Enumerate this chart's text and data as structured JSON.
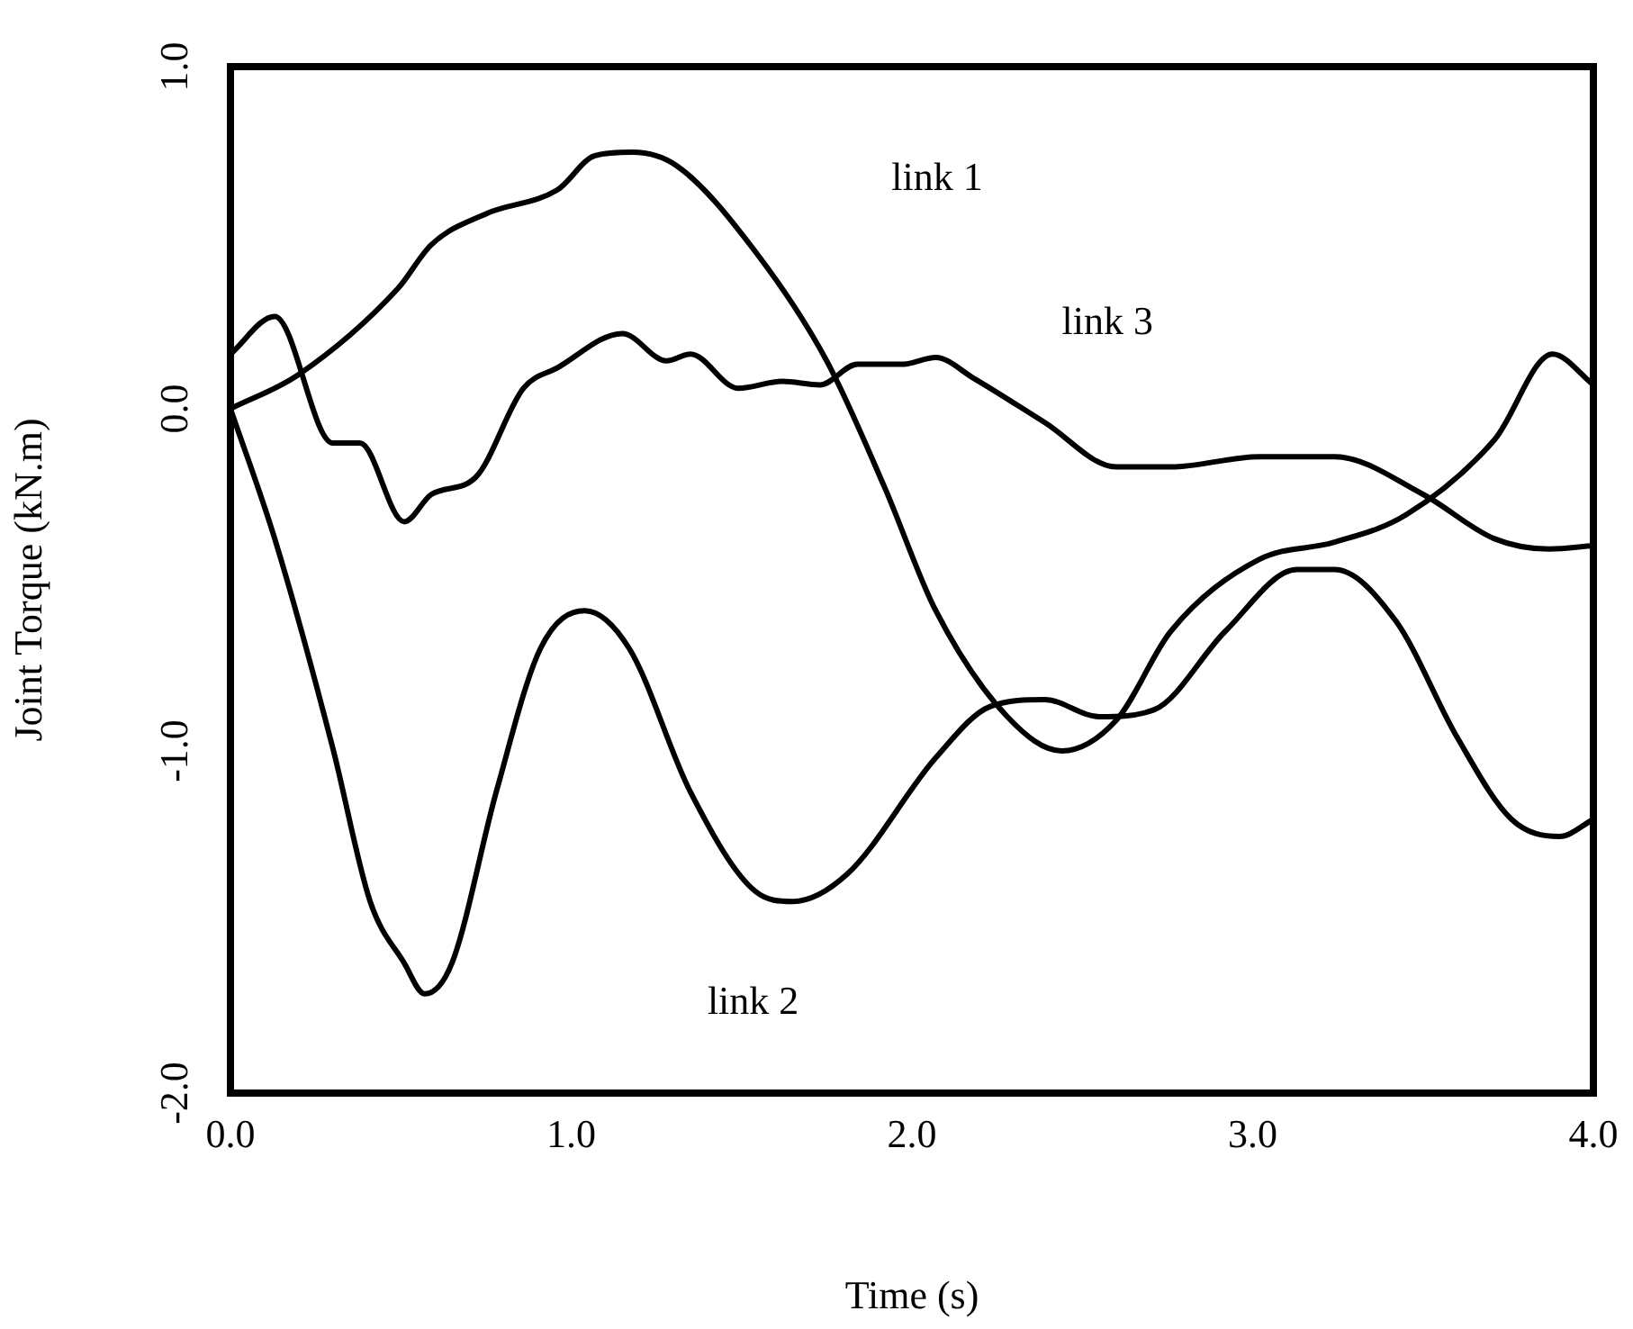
{
  "chart_data": {
    "type": "line",
    "xlabel": "Time (s)",
    "ylabel": "Joint Torque (kN.m)",
    "xlim": [
      0,
      4
    ],
    "ylim": [
      -2,
      1
    ],
    "xticks": [
      {
        "value": 0,
        "label": "0.0"
      },
      {
        "value": 1,
        "label": "1.0"
      },
      {
        "value": 2,
        "label": "2.0"
      },
      {
        "value": 3,
        "label": "3.0"
      },
      {
        "value": 4,
        "label": "4.0"
      }
    ],
    "yticks": [
      {
        "value": -2,
        "label": "-2.0"
      },
      {
        "value": -1,
        "label": "-1.0"
      },
      {
        "value": 0,
        "label": "0.0"
      },
      {
        "value": 1,
        "label": "1.0"
      }
    ],
    "grid": false,
    "legend": false,
    "marker": "none",
    "line_style": "solid",
    "series": [
      {
        "color": "#000000",
        "x": [
          0,
          0.2,
          0.49,
          0.59,
          0.75,
          0.96,
          1.07,
          1.18,
          1.31,
          1.54,
          1.75,
          1.92,
          2.07,
          2.28,
          2.44,
          2.6,
          2.76,
          3.02,
          3.24,
          3.45,
          3.71,
          3.88,
          4.0
        ],
        "values": [
          0,
          0.1,
          0.35,
          0.48,
          0.57,
          0.64,
          0.74,
          0.75,
          0.71,
          0.46,
          0.14,
          -0.23,
          -0.59,
          -0.9,
          -1.0,
          -0.91,
          -0.65,
          -0.44,
          -0.39,
          -0.31,
          -0.09,
          0.16,
          0.07
        ]
      },
      {
        "color": "#000000",
        "x": [
          0,
          0.13,
          0.3,
          0.41,
          0.51,
          0.57,
          0.65,
          0.78,
          0.91,
          1.04,
          1.17,
          1.35,
          1.54,
          1.65,
          1.81,
          2.07,
          2.23,
          2.39,
          2.55,
          2.71,
          2.92,
          3.13,
          3.24,
          3.42,
          3.6,
          3.76,
          3.9,
          4.0
        ],
        "values": [
          0,
          -0.38,
          -0.99,
          -1.44,
          -1.62,
          -1.71,
          -1.62,
          -1.12,
          -0.7,
          -0.59,
          -0.7,
          -1.12,
          -1.41,
          -1.44,
          -1.36,
          -1.02,
          -0.87,
          -0.85,
          -0.9,
          -0.88,
          -0.65,
          -0.47,
          -0.47,
          -0.62,
          -0.96,
          -1.2,
          -1.25,
          -1.2
        ]
      },
      {
        "color": "#000000",
        "x": [
          0,
          0.13,
          0.3,
          0.38,
          0.51,
          0.59,
          0.72,
          0.86,
          0.96,
          1.15,
          1.28,
          1.35,
          1.49,
          1.62,
          1.73,
          1.84,
          1.97,
          2.07,
          2.18,
          2.39,
          2.6,
          2.76,
          3.02,
          3.24,
          3.5,
          3.71,
          3.87,
          4.0
        ],
        "values": [
          0.16,
          0.27,
          -0.1,
          -0.1,
          -0.33,
          -0.25,
          -0.2,
          0.06,
          0.12,
          0.22,
          0.14,
          0.16,
          0.06,
          0.08,
          0.07,
          0.13,
          0.13,
          0.15,
          0.09,
          -0.04,
          -0.17,
          -0.17,
          -0.14,
          -0.14,
          -0.25,
          -0.38,
          -0.41,
          -0.4
        ]
      }
    ],
    "annotations": [
      "link 1",
      "link 3",
      "link 2"
    ]
  }
}
